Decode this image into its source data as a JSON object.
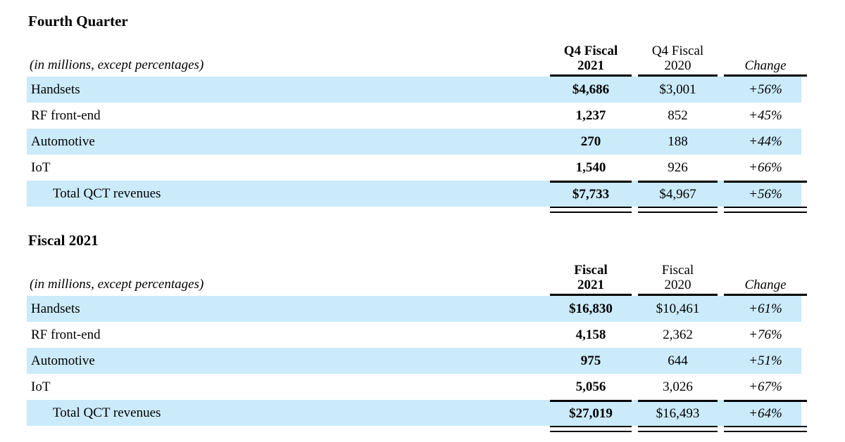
{
  "colors": {
    "stripe": "#cbeafa",
    "rule": "#000000",
    "text": "#000000"
  },
  "sections": [
    {
      "title": "Fourth Quarter",
      "note": "(in millions, except percentages)",
      "col_headers": [
        {
          "line1": "Q4 Fiscal",
          "line2": "2021"
        },
        {
          "line1": "Q4 Fiscal",
          "line2": "2020"
        },
        {
          "label": "Change"
        }
      ],
      "rows": [
        {
          "label": "Handsets",
          "v2021": "$4,686",
          "v2020": "$3,001",
          "change": "+56%"
        },
        {
          "label": "RF front-end",
          "v2021": "1,237",
          "v2020": "852",
          "change": "+45%"
        },
        {
          "label": "Automotive",
          "v2021": "270",
          "v2020": "188",
          "change": "+44%"
        },
        {
          "label": "IoT",
          "v2021": "1,540",
          "v2020": "926",
          "change": "+66%"
        }
      ],
      "total": {
        "label": "Total QCT revenues",
        "v2021": "$7,733",
        "v2020": "$4,967",
        "change": "+56%"
      }
    },
    {
      "title": "Fiscal 2021",
      "note": "(in millions, except percentages)",
      "col_headers": [
        {
          "line1": "Fiscal",
          "line2": "2021"
        },
        {
          "line1": "Fiscal",
          "line2": "2020"
        },
        {
          "label": "Change"
        }
      ],
      "rows": [
        {
          "label": "Handsets",
          "v2021": "$16,830",
          "v2020": "$10,461",
          "change": "+61%"
        },
        {
          "label": "RF front-end",
          "v2021": "4,158",
          "v2020": "2,362",
          "change": "+76%"
        },
        {
          "label": "Automotive",
          "v2021": "975",
          "v2020": "644",
          "change": "+51%"
        },
        {
          "label": "IoT",
          "v2021": "5,056",
          "v2020": "3,026",
          "change": "+67%"
        }
      ],
      "total": {
        "label": "Total QCT revenues",
        "v2021": "$27,019",
        "v2020": "$16,493",
        "change": "+64%"
      }
    }
  ]
}
